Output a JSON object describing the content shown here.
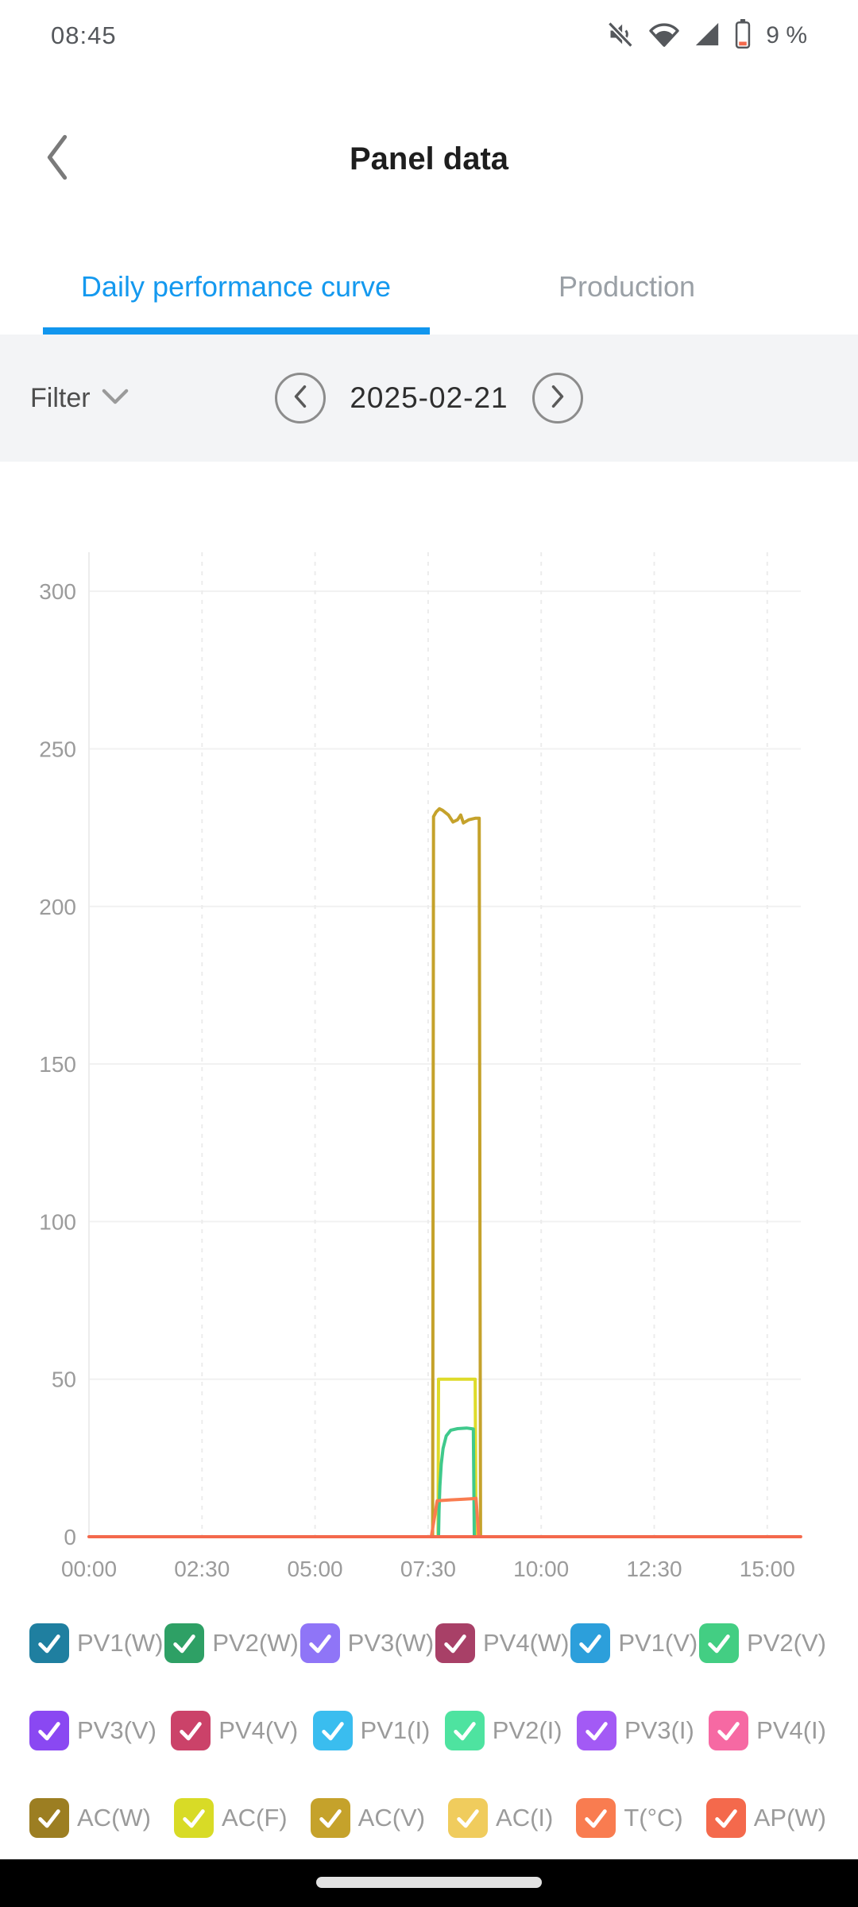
{
  "status_bar": {
    "time": "08:45",
    "battery": "9 %",
    "icons": [
      "sound-muted-icon",
      "wifi-icon",
      "cell-signal-icon",
      "battery-low-icon"
    ]
  },
  "header": {
    "title": "Panel data",
    "back_icon": "back-chevron-icon"
  },
  "tabs": {
    "items": [
      {
        "label": "Daily performance curve",
        "active": true
      },
      {
        "label": "Production",
        "active": false
      }
    ],
    "active_color": "#1499ef"
  },
  "filter_bar": {
    "filter_label": "Filter",
    "filter_icon": "chevron-down-icon",
    "prev_icon": "chevron-left-circle-icon",
    "next_icon": "chevron-right-circle-icon",
    "date": "2025-02-21"
  },
  "chart_data": {
    "type": "line",
    "title": "",
    "xlabel": "",
    "ylabel": "",
    "x_unit": "hours",
    "xlim": [
      0,
      15.74
    ],
    "ylim": [
      0,
      312
    ],
    "yticks": [
      0,
      50,
      100,
      150,
      200,
      250,
      300
    ],
    "xticks": [
      {
        "h": 0,
        "label": "00:00"
      },
      {
        "h": 2.5,
        "label": "02:30"
      },
      {
        "h": 5,
        "label": "05:00"
      },
      {
        "h": 7.5,
        "label": "07:30"
      },
      {
        "h": 10,
        "label": "10:00"
      },
      {
        "h": 12.5,
        "label": "12:30"
      },
      {
        "h": 15,
        "label": "15:00"
      }
    ],
    "grid": {
      "horizontal": "solid",
      "vertical": "dashed"
    },
    "legend_position": "bottom",
    "note": "Data present only from about 07:35 to 08:45; all other checked series overlap at 0 along the orange baseline.",
    "series": [
      {
        "name": "AC(V)",
        "color": "#c5a22b",
        "points": [
          [
            7.6,
            0
          ],
          [
            7.62,
            228.5
          ],
          [
            7.68,
            230
          ],
          [
            7.75,
            231
          ],
          [
            7.82,
            230.5
          ],
          [
            7.95,
            229
          ],
          [
            8.05,
            226.8
          ],
          [
            8.15,
            227.5
          ],
          [
            8.22,
            229
          ],
          [
            8.28,
            226.5
          ],
          [
            8.4,
            227.5
          ],
          [
            8.55,
            228
          ],
          [
            8.63,
            228
          ],
          [
            8.66,
            0
          ]
        ]
      },
      {
        "name": "AC(F)",
        "color": "#dedb2a",
        "points": [
          [
            7.72,
            0
          ],
          [
            7.73,
            50
          ],
          [
            8.54,
            50
          ],
          [
            8.56,
            0
          ]
        ]
      },
      {
        "name": "PV2(V)",
        "color": "#3fc98c",
        "points": [
          [
            7.73,
            0
          ],
          [
            7.74,
            8
          ],
          [
            7.76,
            16
          ],
          [
            7.79,
            23
          ],
          [
            7.83,
            28
          ],
          [
            7.9,
            32
          ],
          [
            8.0,
            33.8
          ],
          [
            8.15,
            34.3
          ],
          [
            8.35,
            34.5
          ],
          [
            8.5,
            34.2
          ],
          [
            8.52,
            0
          ]
        ]
      },
      {
        "name": "T(°C)",
        "color": "#f97c50",
        "points": [
          [
            7.57,
            0
          ],
          [
            7.7,
            11.4
          ],
          [
            8.0,
            11.7
          ],
          [
            8.3,
            11.9
          ],
          [
            8.52,
            12.1
          ],
          [
            8.56,
            12.2
          ],
          [
            8.62,
            0
          ]
        ]
      },
      {
        "name": "AP(W)",
        "color": "#f4694c",
        "points": [
          [
            0,
            0
          ],
          [
            15.74,
            0
          ]
        ]
      }
    ]
  },
  "legend": {
    "rows": [
      [
        {
          "label": "PV1(W)",
          "color": "#1f7fa0",
          "checked": true
        },
        {
          "label": "PV2(W)",
          "color": "#2ea065",
          "checked": true
        },
        {
          "label": "PV3(W)",
          "color": "#8f75f7",
          "checked": true
        },
        {
          "label": "PV4(W)",
          "color": "#a84067",
          "checked": true
        },
        {
          "label": "PV1(V)",
          "color": "#2c9fdb",
          "checked": true
        },
        {
          "label": "PV2(V)",
          "color": "#43ce83",
          "checked": true
        }
      ],
      [
        {
          "label": "PV3(V)",
          "color": "#8a48f2",
          "checked": true
        },
        {
          "label": "PV4(V)",
          "color": "#cb4269",
          "checked": true
        },
        {
          "label": "PV1(I)",
          "color": "#3abdef",
          "checked": true
        },
        {
          "label": "PV2(I)",
          "color": "#4ee3a0",
          "checked": true
        },
        {
          "label": "PV3(I)",
          "color": "#a35af5",
          "checked": true
        },
        {
          "label": "PV4(I)",
          "color": "#f669a3",
          "checked": true
        }
      ],
      [
        {
          "label": "AC(W)",
          "color": "#9c7e22",
          "checked": true
        },
        {
          "label": "AC(F)",
          "color": "#d8db26",
          "checked": true
        },
        {
          "label": "AC(V)",
          "color": "#c5a22b",
          "checked": true
        },
        {
          "label": "AC(I)",
          "color": "#f0cc5d",
          "checked": true
        },
        {
          "label": "T(°C)",
          "color": "#f97c50",
          "checked": true
        },
        {
          "label": "AP(W)",
          "color": "#f4694c",
          "checked": true
        }
      ]
    ]
  },
  "nav": {
    "handle": "gesture-pill"
  }
}
